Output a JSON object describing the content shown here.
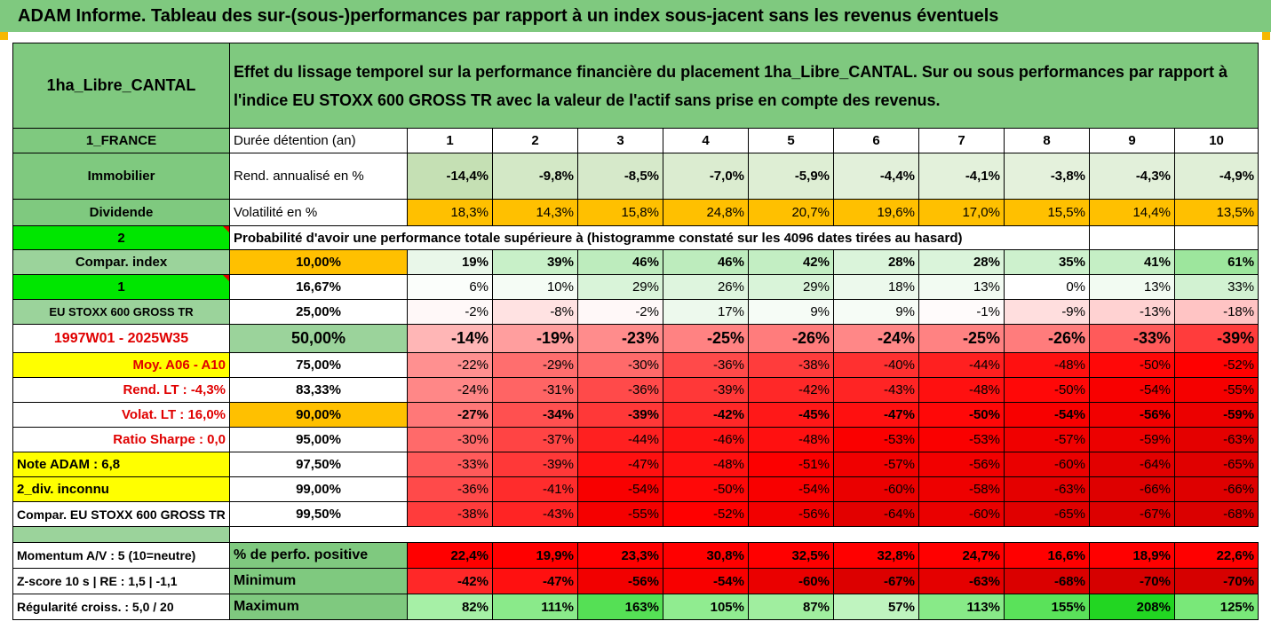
{
  "title": "ADAM Informe. Tableau des sur-(sous-)performances par rapport à un index sous-jacent sans les revenus éventuels",
  "header": {
    "fund": "1ha_Libre_CANTAL",
    "desc1": "Effet du lissage temporel sur la performance financière du placement 1ha_Libre_CANTAL. Sur ou sous performances par rapport à",
    "desc2": "l'indice EU STOXX 600 GROSS TR avec la valeur de l'actif sans prise en compte des revenus."
  },
  "years": [
    "1",
    "2",
    "3",
    "4",
    "5",
    "6",
    "7",
    "8",
    "9",
    "10"
  ],
  "rows": {
    "duree": {
      "left": "1_FRANCE",
      "label": "Durée détention (an)"
    },
    "rend": {
      "left": "Immobilier",
      "label": "Rend. annualisé en %",
      "values": [
        "-14,4%",
        "-9,8%",
        "-8,5%",
        "-7,0%",
        "-5,9%",
        "-4,4%",
        "-4,1%",
        "-3,8%",
        "-4,3%",
        "-4,9%"
      ],
      "colors": [
        "#c5e0b4",
        "#d3e8c6",
        "#d6e9ca",
        "#dbecd0",
        "#deeed4",
        "#e2f0da",
        "#e3f1db",
        "#e4f1dc",
        "#e2f0da",
        "#e0efd7"
      ]
    },
    "vol": {
      "left": "Dividende",
      "label": "Volatilité en %",
      "values": [
        "18,3%",
        "14,3%",
        "15,8%",
        "24,8%",
        "20,7%",
        "19,6%",
        "17,0%",
        "15,5%",
        "14,4%",
        "13,5%"
      ]
    },
    "prob": {
      "left": "2",
      "label": "Probabilité d'avoir une performance totale supérieure à (histogramme constaté sur les 4096 dates tirées au hasard)"
    },
    "quantiles": [
      {
        "left": "Compar. index",
        "pct": "10,00%",
        "values": [
          "19%",
          "39%",
          "46%",
          "46%",
          "42%",
          "28%",
          "28%",
          "35%",
          "41%",
          "61%"
        ],
        "colors": [
          "#e9f7e9",
          "#c8f0c8",
          "#bdecbd",
          "#bdecbd",
          "#c3eec3",
          "#daf4da",
          "#daf4da",
          "#cdf1cd",
          "#c5efc5",
          "#9de69d"
        ]
      },
      {
        "left": "1",
        "pct": "16,67%",
        "values": [
          "6%",
          "10%",
          "29%",
          "26%",
          "29%",
          "18%",
          "13%",
          "0%",
          "13%",
          "33%"
        ],
        "colors": [
          "#fbfefb",
          "#f5fcf5",
          "#d9f4d9",
          "#def5de",
          "#d9f4d9",
          "#ecf9ec",
          "#f2fbf2",
          "#ffffff",
          "#f2fbf2",
          "#d2f2d2"
        ]
      },
      {
        "left": "EU STOXX 600 GROSS TR",
        "pct": "25,00%",
        "values": [
          "-2%",
          "-8%",
          "-2%",
          "17%",
          "9%",
          "9%",
          "-1%",
          "-9%",
          "-13%",
          "-18%"
        ],
        "colors": [
          "#fff8f8",
          "#ffe2e2",
          "#fff8f8",
          "#edf9ed",
          "#f6fcf6",
          "#f6fcf6",
          "#fffbfb",
          "#ffdede",
          "#ffd2d2",
          "#ffc4c4"
        ]
      },
      {
        "left": "1997W01 - 2025W35",
        "pct": "50,00%",
        "values": [
          "-14%",
          "-19%",
          "-23%",
          "-25%",
          "-26%",
          "-24%",
          "-25%",
          "-26%",
          "-33%",
          "-39%"
        ],
        "colors": [
          "#ffb6b6",
          "#ff9e9e",
          "#ff8c8c",
          "#ff8282",
          "#ff7c7c",
          "#ff8787",
          "#ff8282",
          "#ff7c7c",
          "#ff5a5a",
          "#ff3c3c"
        ]
      },
      {
        "left": "Moy. A06 - A10",
        "pct": "75,00%",
        "values": [
          "-22%",
          "-29%",
          "-30%",
          "-36%",
          "-38%",
          "-40%",
          "-44%",
          "-48%",
          "-50%",
          "-52%"
        ],
        "colors": [
          "#ff9090",
          "#ff6e6e",
          "#ff6a6a",
          "#ff4a4a",
          "#ff3c3c",
          "#ff3030",
          "#ff2020",
          "#ff1010",
          "#ff0808",
          "#ff0000"
        ]
      },
      {
        "left": "Rend. LT :    -4,3%",
        "pct": "83,33%",
        "values": [
          "-24%",
          "-31%",
          "-36%",
          "-39%",
          "-42%",
          "-43%",
          "-48%",
          "-50%",
          "-54%",
          "-55%"
        ],
        "colors": [
          "#ff8787",
          "#ff6464",
          "#ff4a4a",
          "#ff3838",
          "#ff2828",
          "#ff2424",
          "#ff1010",
          "#ff0808",
          "#f80000",
          "#f50000"
        ]
      },
      {
        "left": "Volat. LT :    16,0%",
        "pct": "90,00%",
        "values": [
          "-27%",
          "-34%",
          "-39%",
          "-42%",
          "-45%",
          "-47%",
          "-50%",
          "-54%",
          "-56%",
          "-59%"
        ],
        "colors": [
          "#ff7878",
          "#ff5050",
          "#ff3838",
          "#ff2828",
          "#ff1818",
          "#ff1010",
          "#ff0808",
          "#f80000",
          "#f20000",
          "#ec0000"
        ]
      },
      {
        "left": "Ratio Sharpe :    0,0",
        "pct": "95,00%",
        "values": [
          "-30%",
          "-37%",
          "-44%",
          "-46%",
          "-48%",
          "-53%",
          "-53%",
          "-57%",
          "-59%",
          "-63%"
        ],
        "colors": [
          "#ff6a6a",
          "#ff4444",
          "#ff2020",
          "#ff1414",
          "#ff1010",
          "#fa0000",
          "#fa0000",
          "#f00000",
          "#ec0000",
          "#e40000"
        ]
      },
      {
        "left": "Note ADAM : 6,8",
        "pct": "97,50%",
        "values": [
          "-33%",
          "-39%",
          "-47%",
          "-48%",
          "-51%",
          "-57%",
          "-56%",
          "-60%",
          "-64%",
          "-65%"
        ],
        "colors": [
          "#ff5a5a",
          "#ff3838",
          "#ff1010",
          "#ff1010",
          "#fc0000",
          "#f00000",
          "#f20000",
          "#ea0000",
          "#e20000",
          "#e00000"
        ]
      },
      {
        "left": "2_div. inconnu",
        "pct": "99,00%",
        "values": [
          "-36%",
          "-41%",
          "-54%",
          "-50%",
          "-54%",
          "-60%",
          "-58%",
          "-63%",
          "-66%",
          "-66%"
        ],
        "colors": [
          "#ff4a4a",
          "#ff2c2c",
          "#f80000",
          "#ff0808",
          "#f80000",
          "#ea0000",
          "#ee0000",
          "#e40000",
          "#de0000",
          "#de0000"
        ]
      },
      {
        "left": "Compar. EU STOXX 600 GROSS TR",
        "pct": "99,50%",
        "values": [
          "-38%",
          "-43%",
          "-55%",
          "-52%",
          "-56%",
          "-64%",
          "-60%",
          "-65%",
          "-67%",
          "-68%"
        ],
        "colors": [
          "#ff3c3c",
          "#ff2424",
          "#f50000",
          "#ff0000",
          "#f20000",
          "#e20000",
          "#ea0000",
          "#e00000",
          "#dc0000",
          "#da0000"
        ]
      }
    ],
    "stats": [
      {
        "left": "Momentum A/V : 5 (10=neutre)",
        "label": "% de perfo. positive",
        "values": [
          "22,4%",
          "19,9%",
          "23,3%",
          "30,8%",
          "32,5%",
          "32,8%",
          "24,7%",
          "16,6%",
          "18,9%",
          "22,6%"
        ],
        "colors": [
          "#ff0000",
          "#ff0000",
          "#ff0000",
          "#ff0000",
          "#ff0000",
          "#ff0000",
          "#ff0000",
          "#ff0000",
          "#ff0000",
          "#ff0000"
        ]
      },
      {
        "left": "Z-score 10 s  |  RE : 1,5  |  -1,1",
        "label": "Minimum",
        "values": [
          "-42%",
          "-47%",
          "-56%",
          "-54%",
          "-60%",
          "-67%",
          "-63%",
          "-68%",
          "-70%",
          "-70%"
        ],
        "colors": [
          "#ff2828",
          "#ff1010",
          "#f20000",
          "#f80000",
          "#ea0000",
          "#dc0000",
          "#e40000",
          "#da0000",
          "#d60000",
          "#d60000"
        ]
      },
      {
        "left": "Régularité croiss. : 5,0 / 20",
        "label": "Maximum",
        "values": [
          "82%",
          "111%",
          "163%",
          "105%",
          "87%",
          "57%",
          "113%",
          "155%",
          "208%",
          "125%"
        ],
        "colors": [
          "#a6f0a6",
          "#8aea8a",
          "#55e055",
          "#90ec90",
          "#a0ee9f",
          "#bff4bf",
          "#88ea88",
          "#5ae25a",
          "#22d622",
          "#79e879"
        ]
      }
    ]
  }
}
